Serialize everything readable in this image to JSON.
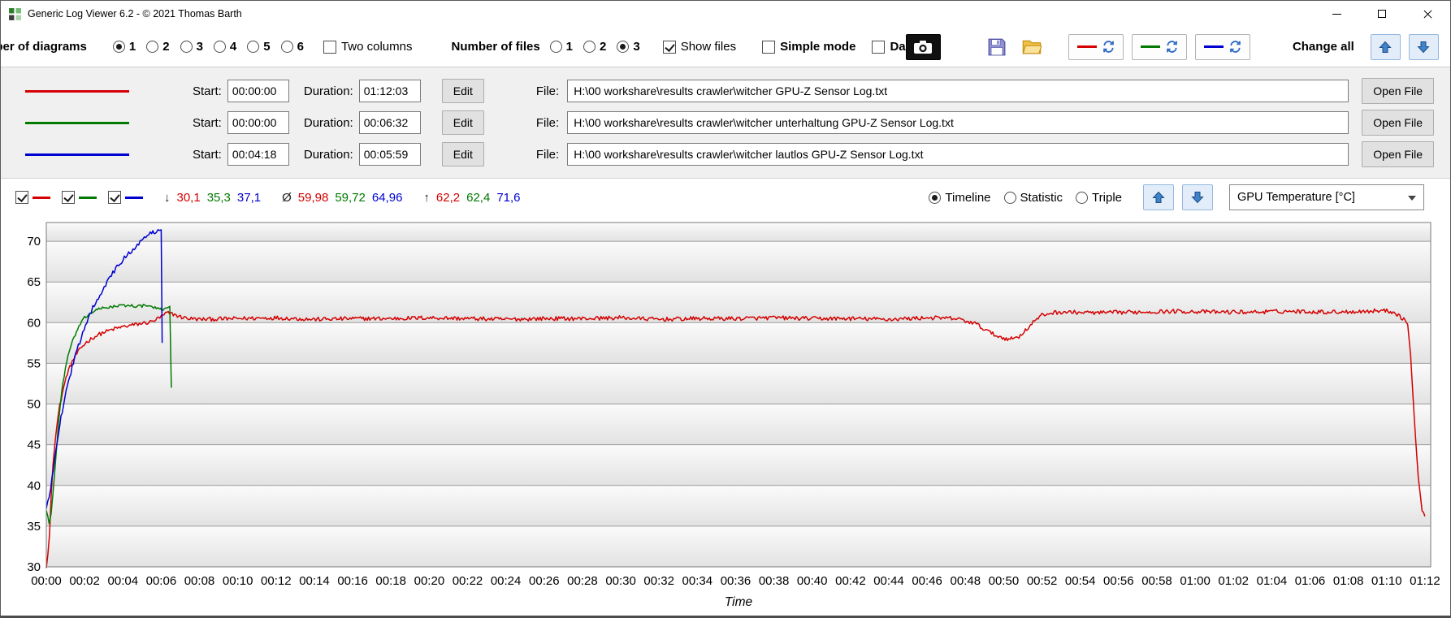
{
  "window": {
    "title": "Generic Log Viewer 6.2 - © 2021 Thomas Barth"
  },
  "colors": {
    "red": "#d40000",
    "green": "#007a00",
    "blue": "#0000d0",
    "accent_blue": "#2e6bc4"
  },
  "toolbar": {
    "diagrams_label": "Number of diagrams",
    "diagram_options": [
      "1",
      "2",
      "3",
      "4",
      "5",
      "6"
    ],
    "diagram_checked": [
      true,
      false,
      false,
      false,
      false,
      false
    ],
    "two_columns_label": "Two columns",
    "two_columns_checked": false,
    "files_label": "Number of files",
    "file_options": [
      "1",
      "2",
      "3"
    ],
    "file_checked": [
      false,
      false,
      true
    ],
    "show_files_label": "Show files",
    "show_files_checked": true,
    "simple_mode_label": "Simple mode",
    "simple_mode_checked": false,
    "dark_label": "Dark",
    "dark_checked": false,
    "change_all_label": "Change all"
  },
  "files_section": {
    "start_label": "Start:",
    "duration_label": "Duration:",
    "edit_label": "Edit",
    "file_label": "File:",
    "open_label": "Open File"
  },
  "files": [
    {
      "color": "#d40000",
      "start": "00:00:00",
      "duration": "01:12:03",
      "path": "H:\\00 workshare\\results crawler\\witcher GPU-Z Sensor Log.txt"
    },
    {
      "color": "#007a00",
      "start": "00:00:00",
      "duration": "00:06:32",
      "path": "H:\\00 workshare\\results crawler\\witcher unterhaltung GPU-Z Sensor Log.txt"
    },
    {
      "color": "#0000d0",
      "start": "00:04:18",
      "duration": "00:05:59",
      "path": "H:\\00 workshare\\results crawler\\witcher lautlos GPU-Z Sensor Log.txt"
    }
  ],
  "chart_panel": {
    "toggles": [
      {
        "color": "#d40000",
        "checked": true
      },
      {
        "color": "#007a00",
        "checked": true
      },
      {
        "color": "#0000d0",
        "checked": true
      }
    ],
    "stats": {
      "min_symbol": "↓",
      "min_values": [
        "30,1",
        "35,3",
        "37,1"
      ],
      "avg_symbol": "Ø",
      "avg_values": [
        "59,98",
        "59,72",
        "64,96"
      ],
      "max_symbol": "↑",
      "max_values": [
        "62,2",
        "62,4",
        "71,6"
      ]
    },
    "modes": [
      {
        "label": "Timeline",
        "selected": true
      },
      {
        "label": "Statistic",
        "selected": false
      },
      {
        "label": "Triple",
        "selected": false
      }
    ],
    "metric_dropdown": "GPU Temperature [°C]"
  },
  "chart_data": {
    "type": "line",
    "title": "",
    "xlabel": "Time",
    "ylabel": "GPU Temperature [°C]",
    "x_unit": "minutes",
    "xlim": [
      0,
      72.3
    ],
    "ylim": [
      30,
      72.3
    ],
    "grid": "horizontal",
    "legend": "none",
    "y_ticks": [
      30,
      35,
      40,
      45,
      50,
      55,
      60,
      65,
      70
    ],
    "x_tick_interval_min": 2,
    "x_ticks": [
      "00:00",
      "00:02",
      "00:04",
      "00:06",
      "00:08",
      "00:10",
      "00:12",
      "00:14",
      "00:16",
      "00:18",
      "00:20",
      "00:22",
      "00:24",
      "00:26",
      "00:28",
      "00:30",
      "00:32",
      "00:34",
      "00:36",
      "00:38",
      "00:40",
      "00:42",
      "00:44",
      "00:46",
      "00:48",
      "00:50",
      "00:52",
      "00:54",
      "00:56",
      "00:58",
      "01:00",
      "01:02",
      "01:04",
      "01:06",
      "01:08",
      "01:10",
      "01:12"
    ],
    "series": [
      {
        "name": "witcher",
        "color": "#d40000",
        "min": 30.1,
        "avg": 59.98,
        "max": 62.2,
        "noise": 0.25,
        "points": [
          [
            0,
            30.1
          ],
          [
            0.08,
            31.5
          ],
          [
            0.17,
            34
          ],
          [
            0.25,
            38.5
          ],
          [
            0.35,
            42.5
          ],
          [
            0.5,
            46.5
          ],
          [
            0.7,
            49.8
          ],
          [
            0.9,
            52
          ],
          [
            1.1,
            53.8
          ],
          [
            1.35,
            55.2
          ],
          [
            1.6,
            56.2
          ],
          [
            1.85,
            57
          ],
          [
            2.1,
            57.6
          ],
          [
            2.4,
            58.1
          ],
          [
            2.7,
            58.5
          ],
          [
            3,
            58.8
          ],
          [
            3.5,
            59.2
          ],
          [
            4,
            59.5
          ],
          [
            4.5,
            59.7
          ],
          [
            5,
            59.9
          ],
          [
            5.5,
            60.1
          ],
          [
            6,
            60.7
          ],
          [
            6.3,
            61.2
          ],
          [
            6.7,
            61
          ],
          [
            7,
            60.7
          ],
          [
            7.5,
            60.5
          ],
          [
            8,
            60.4
          ],
          [
            10,
            60.5
          ],
          [
            12,
            60.6
          ],
          [
            14,
            60.4
          ],
          [
            16,
            60.5
          ],
          [
            18,
            60.5
          ],
          [
            20,
            60.6
          ],
          [
            22,
            60.5
          ],
          [
            24,
            60.4
          ],
          [
            26,
            60.5
          ],
          [
            28,
            60.5
          ],
          [
            30,
            60.6
          ],
          [
            32,
            60.4
          ],
          [
            34,
            60.5
          ],
          [
            36,
            60.5
          ],
          [
            38,
            60.6
          ],
          [
            40,
            60.5
          ],
          [
            42,
            60.5
          ],
          [
            44,
            60.4
          ],
          [
            46,
            60.6
          ],
          [
            47.5,
            60.5
          ],
          [
            48.5,
            59.9
          ],
          [
            49,
            59.2
          ],
          [
            49.5,
            58.5
          ],
          [
            50,
            58.1
          ],
          [
            50.4,
            58
          ],
          [
            50.8,
            58.3
          ],
          [
            51.2,
            59.2
          ],
          [
            51.6,
            60.2
          ],
          [
            52,
            60.9
          ],
          [
            52.5,
            61.2
          ],
          [
            53,
            61.3
          ],
          [
            55,
            61.2
          ],
          [
            57,
            61.3
          ],
          [
            59,
            61.4
          ],
          [
            61,
            61.3
          ],
          [
            63,
            61.3
          ],
          [
            65,
            61.4
          ],
          [
            67,
            61.3
          ],
          [
            69,
            61.4
          ],
          [
            69.8,
            61.5
          ],
          [
            70.4,
            61.3
          ],
          [
            70.9,
            60.4
          ],
          [
            71.1,
            59.8
          ],
          [
            71.25,
            56
          ],
          [
            71.45,
            48
          ],
          [
            71.65,
            41
          ],
          [
            71.85,
            37
          ],
          [
            72,
            36.2
          ]
        ]
      },
      {
        "name": "witcher unterhaltung",
        "color": "#007a00",
        "min": 35.3,
        "avg": 59.72,
        "max": 62.4,
        "noise": 0.18,
        "points": [
          [
            0,
            37
          ],
          [
            0.08,
            36.2
          ],
          [
            0.15,
            35.3
          ],
          [
            0.25,
            36.5
          ],
          [
            0.35,
            39
          ],
          [
            0.5,
            43.5
          ],
          [
            0.65,
            48
          ],
          [
            0.8,
            51.5
          ],
          [
            1,
            54.5
          ],
          [
            1.2,
            56.5
          ],
          [
            1.45,
            58.2
          ],
          [
            1.7,
            59.5
          ],
          [
            2,
            60.6
          ],
          [
            2.4,
            61.3
          ],
          [
            2.8,
            61.7
          ],
          [
            3.2,
            61.9
          ],
          [
            3.6,
            62
          ],
          [
            4,
            62.1
          ],
          [
            4.4,
            62.1
          ],
          [
            4.8,
            62
          ],
          [
            5.2,
            62.1
          ],
          [
            5.6,
            61.9
          ],
          [
            5.9,
            61.6
          ],
          [
            6.1,
            61.6
          ],
          [
            6.3,
            61.9
          ],
          [
            6.45,
            62
          ],
          [
            6.53,
            52
          ]
        ]
      },
      {
        "name": "witcher lautlos",
        "color": "#0000d0",
        "min": 37.1,
        "avg": 64.96,
        "max": 71.6,
        "noise": 0.3,
        "points": [
          [
            0,
            37.1
          ],
          [
            0.15,
            38.5
          ],
          [
            0.3,
            41
          ],
          [
            0.5,
            44.5
          ],
          [
            0.7,
            47.5
          ],
          [
            0.9,
            50
          ],
          [
            1.1,
            52.3
          ],
          [
            1.35,
            54.5
          ],
          [
            1.6,
            56.5
          ],
          [
            1.9,
            58.8
          ],
          [
            2.2,
            60.7
          ],
          [
            2.5,
            62.2
          ],
          [
            2.8,
            63.5
          ],
          [
            3.1,
            64.7
          ],
          [
            3.4,
            65.8
          ],
          [
            3.7,
            66.8
          ],
          [
            4,
            67.7
          ],
          [
            4.3,
            68.5
          ],
          [
            4.6,
            69.2
          ],
          [
            4.9,
            69.9
          ],
          [
            5.2,
            70.5
          ],
          [
            5.5,
            71
          ],
          [
            5.75,
            71.3
          ],
          [
            5.92,
            71.6
          ],
          [
            6,
            71.4
          ],
          [
            6.05,
            57.5
          ]
        ]
      }
    ]
  }
}
